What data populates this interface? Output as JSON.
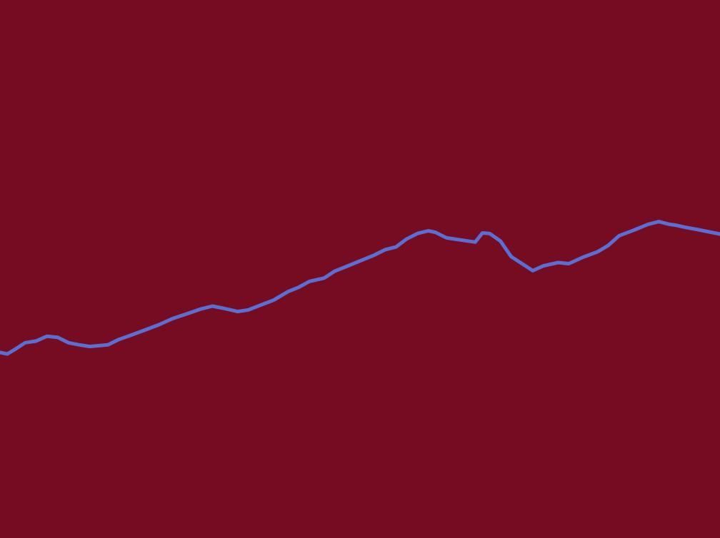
{
  "colors": {
    "background": "#750c21",
    "line": "#5b6fd2"
  },
  "chart_data": {
    "type": "line",
    "title": "",
    "xlabel": "",
    "ylabel": "",
    "grid": false,
    "legend": "none",
    "xlim": [
      0,
      100
    ],
    "ylim": [
      0,
      100
    ],
    "series": [
      {
        "x": [
          0,
          1,
          2,
          3.5,
          5,
          6.5,
          8,
          9.5,
          11,
          12.5,
          15,
          16.5,
          18,
          20,
          22,
          24,
          26,
          28,
          29.5,
          31,
          33,
          34.5,
          36,
          38,
          40,
          41.5,
          43,
          45,
          46.5,
          48,
          50,
          52,
          53.5,
          55,
          56.5,
          58,
          59.5,
          60.5,
          62,
          64,
          66,
          67,
          68,
          69.5,
          71,
          72.5,
          74,
          75.5,
          77.5,
          79,
          81,
          83,
          84.5,
          86,
          88,
          90,
          91.5,
          93,
          94,
          95,
          97,
          98.5,
          100
        ],
        "y": [
          34.5,
          34.2,
          35,
          36.3,
          36.6,
          37.5,
          37.3,
          36.3,
          35.9,
          35.6,
          35.9,
          36.9,
          37.6,
          38.6,
          39.6,
          40.8,
          41.7,
          42.6,
          43.1,
          42.7,
          42.1,
          42.4,
          43.2,
          44.2,
          45.8,
          46.6,
          47.7,
          48.3,
          49.6,
          50.4,
          51.5,
          52.6,
          53.6,
          54.1,
          55.6,
          56.6,
          57.1,
          56.8,
          55.8,
          55.4,
          55,
          56.7,
          56.6,
          55.2,
          52.3,
          51,
          49.7,
          50.6,
          51.2,
          51,
          52.2,
          53.2,
          54.4,
          56.2,
          57.2,
          58.3,
          58.8,
          58.3,
          58.1,
          57.8,
          57.3,
          56.9,
          56.5
        ]
      }
    ]
  }
}
